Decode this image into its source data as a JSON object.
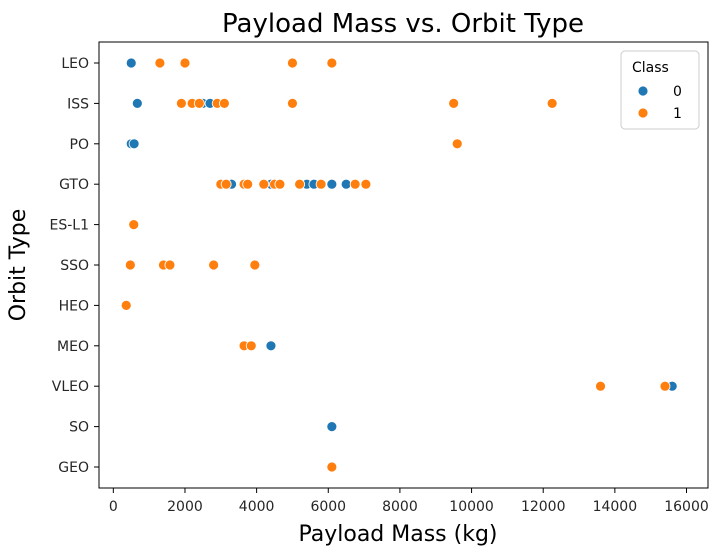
{
  "chart_data": {
    "type": "scatter",
    "title": "Payload Mass vs. Orbit Type",
    "xlabel": "Payload Mass (kg)",
    "ylabel": "Orbit Type",
    "xlim": [
      -400,
      16600
    ],
    "xticks": [
      0,
      2000,
      4000,
      6000,
      8000,
      10000,
      12000,
      14000,
      16000
    ],
    "xtick_labels": [
      "0",
      "2000",
      "4000",
      "6000",
      "8000",
      "10000",
      "12000",
      "14000",
      "16000"
    ],
    "categories": [
      "LEO",
      "ISS",
      "PO",
      "GTO",
      "ES-L1",
      "SSO",
      "HEO",
      "MEO",
      "VLEO",
      "SO",
      "GEO"
    ],
    "grid": false,
    "legend": {
      "title": "Class",
      "placement": "top-right",
      "entries": [
        {
          "label": "0",
          "color": "#1f77b4"
        },
        {
          "label": "1",
          "color": "#ff7f0e"
        }
      ]
    },
    "series": [
      {
        "name": "0",
        "color": "#1f77b4",
        "points": [
          {
            "x": 500,
            "y": "LEO"
          },
          {
            "x": 670,
            "y": "ISS"
          },
          {
            "x": 2500,
            "y": "ISS"
          },
          {
            "x": 2700,
            "y": "ISS"
          },
          {
            "x": 500,
            "y": "PO"
          },
          {
            "x": 580,
            "y": "PO"
          },
          {
            "x": 3300,
            "y": "GTO"
          },
          {
            "x": 4400,
            "y": "GTO"
          },
          {
            "x": 5400,
            "y": "GTO"
          },
          {
            "x": 5600,
            "y": "GTO"
          },
          {
            "x": 6100,
            "y": "GTO"
          },
          {
            "x": 6500,
            "y": "GTO"
          },
          {
            "x": 4400,
            "y": "MEO"
          },
          {
            "x": 15600,
            "y": "VLEO"
          },
          {
            "x": 6100,
            "y": "SO"
          }
        ]
      },
      {
        "name": "1",
        "color": "#ff7f0e",
        "points": [
          {
            "x": 1300,
            "y": "LEO"
          },
          {
            "x": 2000,
            "y": "LEO"
          },
          {
            "x": 5000,
            "y": "LEO"
          },
          {
            "x": 6100,
            "y": "LEO"
          },
          {
            "x": 1900,
            "y": "ISS"
          },
          {
            "x": 2200,
            "y": "ISS"
          },
          {
            "x": 2400,
            "y": "ISS"
          },
          {
            "x": 2900,
            "y": "ISS"
          },
          {
            "x": 3100,
            "y": "ISS"
          },
          {
            "x": 5000,
            "y": "ISS"
          },
          {
            "x": 9500,
            "y": "ISS"
          },
          {
            "x": 12250,
            "y": "ISS"
          },
          {
            "x": 9600,
            "y": "PO"
          },
          {
            "x": 3000,
            "y": "GTO"
          },
          {
            "x": 3150,
            "y": "GTO"
          },
          {
            "x": 3650,
            "y": "GTO"
          },
          {
            "x": 3750,
            "y": "GTO"
          },
          {
            "x": 4200,
            "y": "GTO"
          },
          {
            "x": 4500,
            "y": "GTO"
          },
          {
            "x": 4650,
            "y": "GTO"
          },
          {
            "x": 5200,
            "y": "GTO"
          },
          {
            "x": 5800,
            "y": "GTO"
          },
          {
            "x": 6750,
            "y": "GTO"
          },
          {
            "x": 7050,
            "y": "GTO"
          },
          {
            "x": 570,
            "y": "ES-L1"
          },
          {
            "x": 475,
            "y": "SSO"
          },
          {
            "x": 1400,
            "y": "SSO"
          },
          {
            "x": 1580,
            "y": "SSO"
          },
          {
            "x": 2800,
            "y": "SSO"
          },
          {
            "x": 3950,
            "y": "SSO"
          },
          {
            "x": 360,
            "y": "HEO"
          },
          {
            "x": 3650,
            "y": "MEO"
          },
          {
            "x": 3850,
            "y": "MEO"
          },
          {
            "x": 13600,
            "y": "VLEO"
          },
          {
            "x": 15400,
            "y": "VLEO"
          },
          {
            "x": 6100,
            "y": "GEO"
          }
        ]
      }
    ]
  }
}
